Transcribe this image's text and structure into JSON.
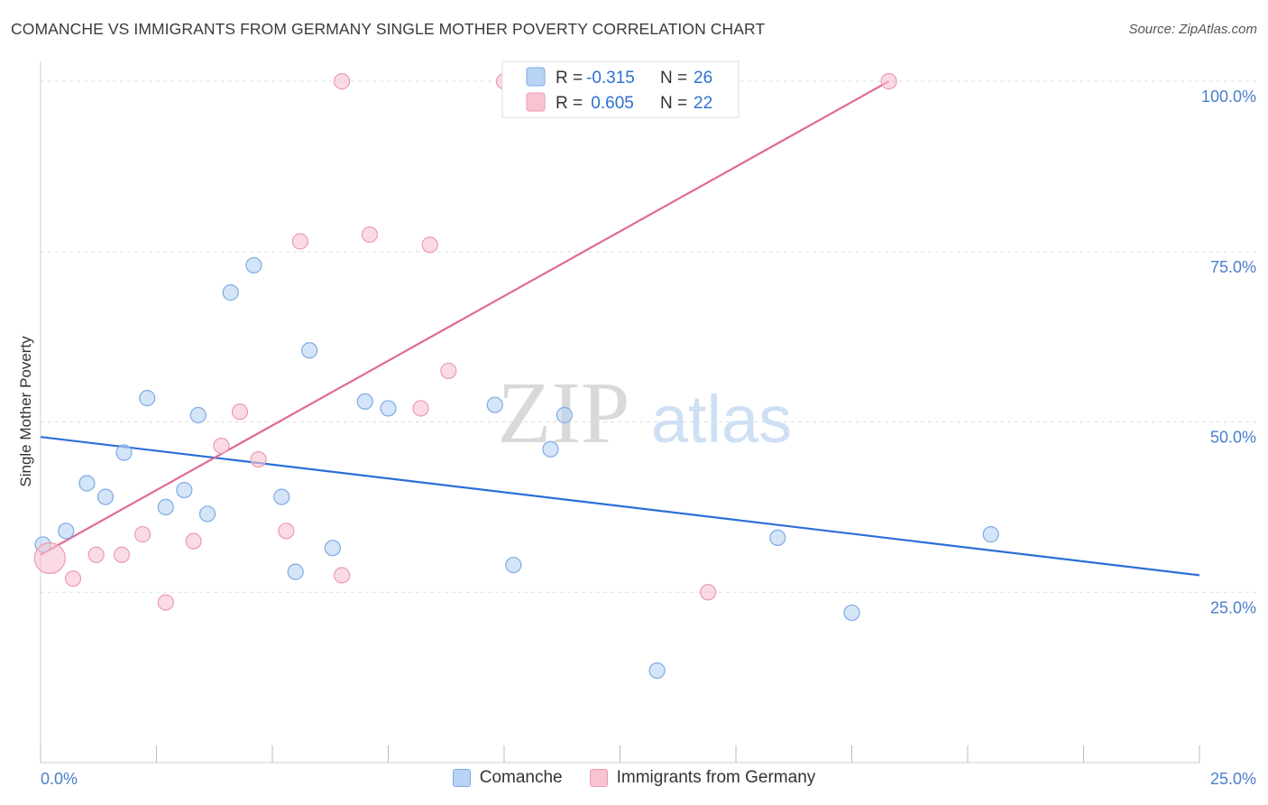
{
  "title": "COMANCHE VS IMMIGRANTS FROM GERMANY SINGLE MOTHER POVERTY CORRELATION CHART",
  "source": "Source: ZipAtlas.com",
  "watermark": {
    "zip": "ZIP",
    "atlas": "atlas"
  },
  "colors": {
    "blue_fill": "#b8d3f3",
    "blue_stroke": "#7eaae3",
    "blue_line": "#2b6fd6",
    "pink_fill": "#f9c3d1",
    "pink_stroke": "#ec9ab2",
    "pink_line": "#e06a93",
    "tick_text": "#4a7fcb",
    "grid": "#dddddd"
  },
  "legend": {
    "rows": [
      {
        "r_label": "R =",
        "r_value": "-0.315",
        "n_label": "N =",
        "n_value": "26"
      },
      {
        "r_label": "R =",
        "r_value": " 0.605",
        "n_label": "N =",
        "n_value": "22"
      }
    ]
  },
  "bottom_legend": {
    "series1": "Comanche",
    "series2": "Immigrants from Germany"
  },
  "chart_data": {
    "type": "scatter",
    "title": "COMANCHE VS IMMIGRANTS FROM GERMANY SINGLE MOTHER POVERTY CORRELATION CHART",
    "xlabel": "",
    "ylabel": "Single Mother Poverty",
    "xlim": [
      0,
      25
    ],
    "ylim": [
      0,
      102
    ],
    "x_tick_labels": [
      "0.0%",
      "25.0%"
    ],
    "y_ticks": [
      25,
      50,
      75,
      100
    ],
    "y_tick_labels": [
      "25.0%",
      "50.0%",
      "75.0%",
      "100.0%"
    ],
    "grid": true,
    "series": [
      {
        "name": "Comanche",
        "points": [
          {
            "x": 0.05,
            "y": 32.0
          },
          {
            "x": 0.55,
            "y": 34.0
          },
          {
            "x": 1.0,
            "y": 41.0
          },
          {
            "x": 1.4,
            "y": 39.0
          },
          {
            "x": 1.8,
            "y": 45.5
          },
          {
            "x": 2.3,
            "y": 53.5
          },
          {
            "x": 2.7,
            "y": 37.5
          },
          {
            "x": 3.1,
            "y": 40.0
          },
          {
            "x": 3.4,
            "y": 51.0
          },
          {
            "x": 3.6,
            "y": 36.5
          },
          {
            "x": 4.1,
            "y": 69.0
          },
          {
            "x": 4.6,
            "y": 73.0
          },
          {
            "x": 5.2,
            "y": 39.0
          },
          {
            "x": 5.5,
            "y": 28.0
          },
          {
            "x": 5.8,
            "y": 60.5
          },
          {
            "x": 6.3,
            "y": 31.5
          },
          {
            "x": 7.0,
            "y": 53.0
          },
          {
            "x": 7.5,
            "y": 52.0
          },
          {
            "x": 9.8,
            "y": 52.5
          },
          {
            "x": 10.2,
            "y": 29.0
          },
          {
            "x": 11.0,
            "y": 46.0
          },
          {
            "x": 11.3,
            "y": 51.0
          },
          {
            "x": 13.3,
            "y": 13.5
          },
          {
            "x": 15.9,
            "y": 33.0
          },
          {
            "x": 17.5,
            "y": 22.0
          },
          {
            "x": 20.5,
            "y": 33.5
          }
        ],
        "trend": {
          "x": [
            0,
            25
          ],
          "y": [
            47.8,
            27.5
          ]
        }
      },
      {
        "name": "Immigrants from Germany",
        "points": [
          {
            "x": 0.2,
            "y": 30.0,
            "size": "large"
          },
          {
            "x": 0.7,
            "y": 27.0
          },
          {
            "x": 1.2,
            "y": 30.5
          },
          {
            "x": 1.75,
            "y": 30.5
          },
          {
            "x": 2.2,
            "y": 33.5
          },
          {
            "x": 2.7,
            "y": 23.5
          },
          {
            "x": 3.3,
            "y": 32.5
          },
          {
            "x": 3.9,
            "y": 46.5
          },
          {
            "x": 4.3,
            "y": 51.5
          },
          {
            "x": 4.7,
            "y": 44.5
          },
          {
            "x": 5.3,
            "y": 34.0
          },
          {
            "x": 5.6,
            "y": 76.5
          },
          {
            "x": 6.5,
            "y": 27.5
          },
          {
            "x": 6.5,
            "y": 100.0
          },
          {
            "x": 7.1,
            "y": 77.5
          },
          {
            "x": 8.2,
            "y": 52.0
          },
          {
            "x": 8.4,
            "y": 76.0
          },
          {
            "x": 8.8,
            "y": 57.5
          },
          {
            "x": 10.0,
            "y": 100.0
          },
          {
            "x": 10.4,
            "y": 100.0
          },
          {
            "x": 14.4,
            "y": 25.0
          },
          {
            "x": 18.3,
            "y": 100.0
          }
        ],
        "trend": {
          "x": [
            0,
            18.3
          ],
          "y": [
            30.5,
            100.0
          ]
        }
      }
    ]
  }
}
